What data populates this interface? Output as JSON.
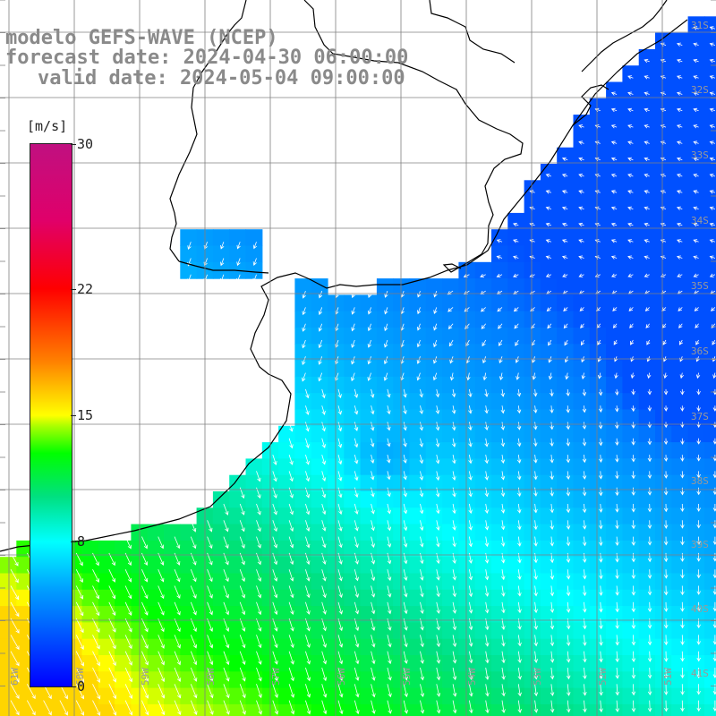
{
  "title": {
    "line1": "modelo GEFS-WAVE (NCEP)",
    "line2": "forecast date: 2024-04-30 06:00:00",
    "line3": "valid date: 2024-05-04 09:00:00"
  },
  "colorbar": {
    "unit": "[m/s]",
    "min": 0,
    "max": 30,
    "ticks": [
      {
        "value": 30,
        "label": "30"
      },
      {
        "value": 22,
        "label": "22"
      },
      {
        "value": 15,
        "label": "15"
      },
      {
        "value": 8,
        "label": "8"
      },
      {
        "value": 0,
        "label": "0"
      }
    ],
    "colors": [
      "#0000ff",
      "#00a0ff",
      "#00ffff",
      "#00ff00",
      "#ffff00",
      "#ff8000",
      "#ff0000",
      "#c01080"
    ]
  },
  "map": {
    "lon_range": [
      -61,
      -50
    ],
    "lat_range": [
      -41.5,
      -30
    ],
    "lat_labels": [
      "31S",
      "32S",
      "33S",
      "34S",
      "35S",
      "36S",
      "37S",
      "38S",
      "39S",
      "40S",
      "41S"
    ],
    "lon_labels": [
      "61W",
      "60W",
      "59W",
      "58W",
      "57W",
      "56W",
      "55W",
      "54W",
      "53W",
      "52W",
      "51W"
    ],
    "land_color": "#ffffff",
    "coast_color": "#000000",
    "grid_color": "#808080",
    "arrow_color": "#ffffff"
  }
}
